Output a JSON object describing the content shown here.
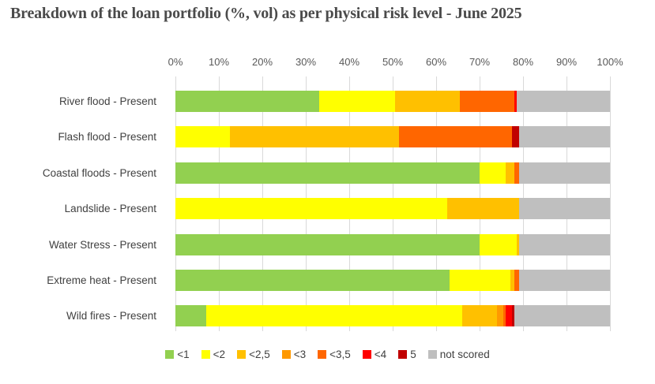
{
  "title": "Breakdown of the loan portfolio (%, vol) as per physical risk level - June 2025",
  "colors": {
    "title_text": "#4A4A4A",
    "axis_text": "#595959",
    "category_text": "#404040",
    "gridline": "#D9D9D9",
    "background": "#FFFFFF"
  },
  "chart_data": {
    "type": "bar",
    "orientation": "horizontal-stacked",
    "title": "Breakdown of the loan portfolio (%, vol) as per physical risk level - June 2025",
    "xlabel": "",
    "ylabel": "",
    "x_axis": {
      "position": "top",
      "min": 0,
      "max": 100,
      "unit": "%",
      "grid": true,
      "ticks": [
        "0%",
        "10%",
        "20%",
        "30%",
        "40%",
        "50%",
        "60%",
        "70%",
        "80%",
        "90%",
        "100%"
      ]
    },
    "categories": [
      "River flood - Present",
      "Flash flood - Present",
      "Coastal floods - Present",
      "Landslide - Present",
      "Water Stress - Present",
      "Extreme heat - Present",
      "Wild fires - Present"
    ],
    "series": [
      {
        "name": "<1",
        "color": "#92D050",
        "values": [
          33,
          0,
          70,
          0,
          70,
          63,
          7
        ]
      },
      {
        "name": "<2",
        "color": "#FFFF00",
        "values": [
          17.5,
          12.5,
          6,
          62.5,
          8.5,
          14,
          59
        ]
      },
      {
        "name": "<2,5",
        "color": "#FFC000",
        "values": [
          15,
          39,
          2,
          16.5,
          0.5,
          1,
          8
        ]
      },
      {
        "name": "<3",
        "color": "#FF9900",
        "values": [
          0,
          0,
          0,
          0,
          0,
          0,
          1.5
        ]
      },
      {
        "name": "<3,5",
        "color": "#FF6600",
        "values": [
          12.5,
          26,
          1,
          0,
          0,
          1,
          0.5
        ]
      },
      {
        "name": "<4",
        "color": "#FF0000",
        "values": [
          0.5,
          0,
          0,
          0,
          0,
          0,
          1.5
        ]
      },
      {
        "name": "5",
        "color": "#C00000",
        "values": [
          0,
          1.5,
          0,
          0,
          0,
          0,
          0.5
        ]
      },
      {
        "name": "not scored",
        "color": "#BFBFBF",
        "values": [
          21.5,
          21,
          21,
          21,
          21,
          21,
          22
        ]
      }
    ],
    "legend": {
      "position": "bottom"
    }
  }
}
